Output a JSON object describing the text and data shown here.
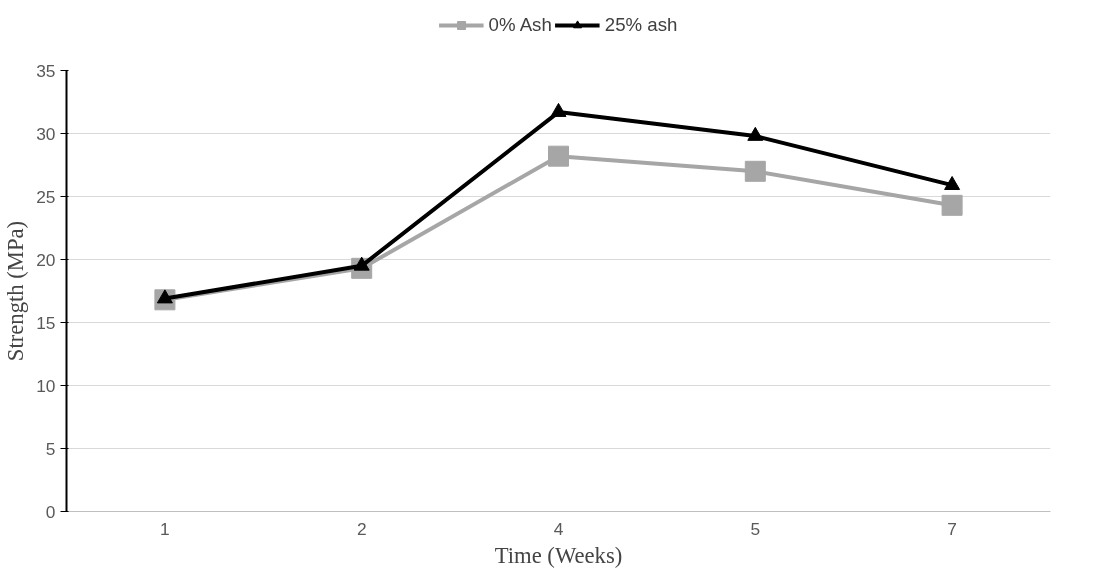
{
  "chart_data": {
    "type": "line",
    "xlabel": "Time (Weeks)",
    "ylabel": "Strength (MPa)",
    "categories": [
      "1",
      "2",
      "4",
      "5",
      "7"
    ],
    "series": [
      {
        "name": "0% Ash",
        "color": "#a6a6a6",
        "marker": "square",
        "values": [
          16.8,
          19.3,
          28.2,
          27.0,
          24.3
        ]
      },
      {
        "name": "25% ash",
        "color": "#000000",
        "marker": "triangle",
        "values": [
          16.9,
          19.5,
          31.7,
          29.8,
          25.9
        ]
      }
    ],
    "ylim": [
      0,
      35
    ],
    "yticks": [
      0,
      5,
      10,
      15,
      20,
      25,
      30,
      35
    ],
    "grid": "y",
    "legend": "top",
    "line_style": "solid"
  }
}
